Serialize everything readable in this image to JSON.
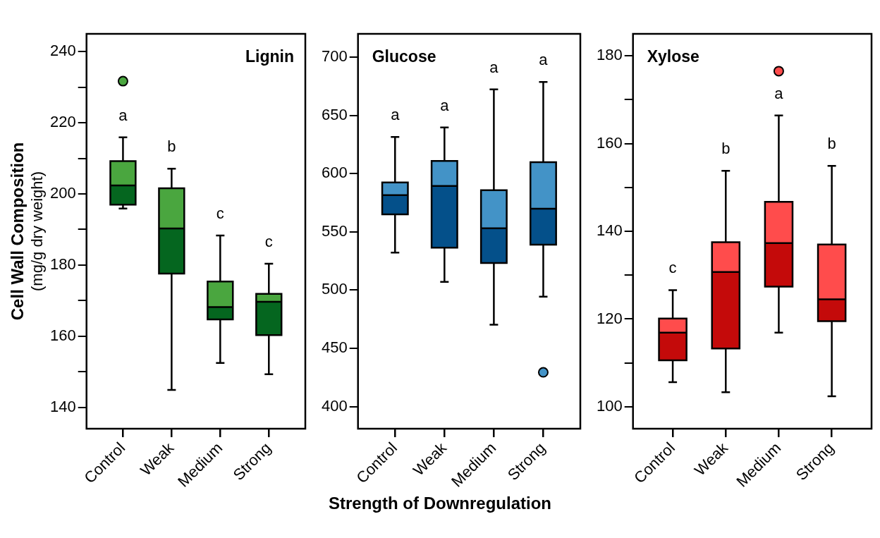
{
  "chart_data": [
    {
      "type": "box",
      "title": "Lignin",
      "ylabel": "Cell Wall Composition\n(mg/g dry weight)",
      "categories": [
        "Control",
        "Weak",
        "Medium",
        "Strong"
      ],
      "ylim": [
        134,
        245
      ],
      "yticks": [
        140,
        {
          "value": 150,
          "label": null
        },
        160,
        {
          "value": 170,
          "label": null
        },
        180,
        {
          "value": 190,
          "label": null
        },
        200,
        {
          "value": 210,
          "label": null
        },
        220,
        {
          "value": 230,
          "label": null
        },
        240
      ],
      "series": [
        {
          "color": "#4aa63f",
          "colors": [
            "#05661f",
            "#05661f",
            "#05661f",
            "#05661f"
          ],
          "boxes": [
            {
              "low": 195.9,
              "q1": 197.0,
              "median": 202.4,
              "q3": 209.2,
              "high": 215.9,
              "outliers": [
                231.7
              ]
            },
            {
              "low": 144.9,
              "q1": 177.6,
              "median": 190.3,
              "q3": 201.6,
              "high": 207.1
            },
            {
              "low": 152.5,
              "q1": 164.7,
              "median": 168.2,
              "q3": 175.4,
              "high": 188.3
            },
            {
              "low": 149.3,
              "q1": 160.3,
              "median": 169.7,
              "q3": 171.9,
              "high": 180.4
            }
          ]
        }
      ],
      "annotations": [
        "a",
        "b",
        "c",
        "c"
      ]
    },
    {
      "type": "box",
      "title": "Glucose",
      "xlabel": "Strength of Downregulation",
      "categories": [
        "Control",
        "Weak",
        "Medium",
        "Strong"
      ],
      "ylim": [
        381,
        720
      ],
      "yticks": [
        400,
        450,
        500,
        550,
        600,
        650,
        700
      ],
      "series": [
        {
          "color": "#4393c7",
          "colors": [
            "#04508a",
            "#04508a",
            "#04508a",
            "#04508a"
          ],
          "boxes": [
            {
              "low": 532.2,
              "q1": 565.0,
              "median": 581.5,
              "q3": 592.4,
              "high": 631.5
            },
            {
              "low": 507.1,
              "q1": 536.5,
              "median": 589.4,
              "q3": 610.9,
              "high": 639.6
            },
            {
              "low": 470.3,
              "q1": 523.2,
              "median": 553.0,
              "q3": 585.8,
              "high": 672.4
            },
            {
              "low": 494.3,
              "q1": 539.0,
              "median": 569.8,
              "q3": 609.8,
              "high": 678.7,
              "outliers": [
                429.4
              ]
            }
          ]
        }
      ],
      "annotations": [
        "a",
        "a",
        "a",
        "a"
      ]
    },
    {
      "type": "box",
      "title": "Xylose",
      "categories": [
        "Control",
        "Weak",
        "Medium",
        "Strong"
      ],
      "ylim": [
        95,
        185
      ],
      "yticks": [
        100,
        {
          "value": 110,
          "label": null
        },
        120,
        {
          "value": 130,
          "label": null
        },
        140,
        {
          "value": 150,
          "label": null
        },
        160,
        {
          "value": 170,
          "label": null
        },
        180
      ],
      "series": [
        {
          "color": "#ff4c4c",
          "colors": [
            "#c40a0a",
            "#c40a0a",
            "#c40a0a",
            "#c40a0a"
          ],
          "boxes": [
            {
              "low": 105.6,
              "q1": 110.6,
              "median": 116.9,
              "q3": 120.1,
              "high": 126.6
            },
            {
              "low": 103.3,
              "q1": 113.3,
              "median": 130.7,
              "q3": 137.5,
              "high": 153.8
            },
            {
              "low": 116.9,
              "q1": 127.4,
              "median": 137.3,
              "q3": 146.7,
              "high": 166.4,
              "outliers": [
                176.5
              ]
            },
            {
              "low": 102.4,
              "q1": 119.5,
              "median": 124.5,
              "q3": 137.0,
              "high": 154.9
            }
          ]
        }
      ],
      "annotations": [
        "c",
        "b",
        "a",
        "b"
      ]
    }
  ]
}
